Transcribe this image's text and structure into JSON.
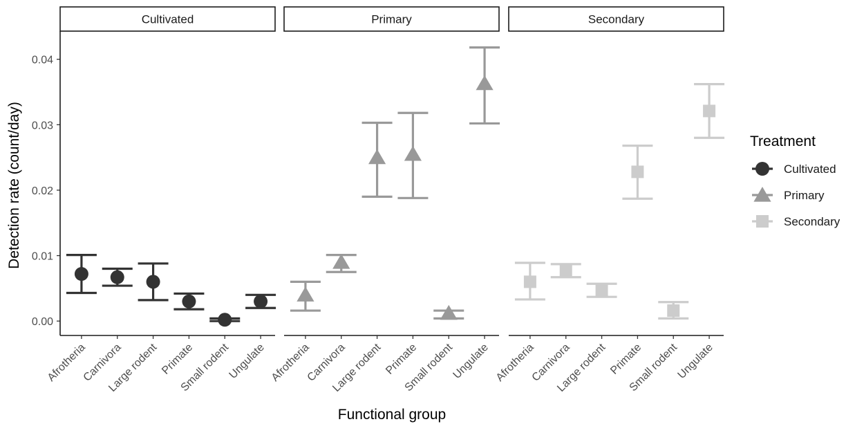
{
  "chart_data": {
    "type": "scatter",
    "subtype": "point-errorbar-facets",
    "xlabel": "Functional group",
    "ylabel": "Detection rate (count/day)",
    "ylim": [
      -0.0022,
      0.0443
    ],
    "y_ticks": [
      0.0,
      0.01,
      0.02,
      0.03,
      0.04
    ],
    "y_tick_labels": [
      "0.00",
      "0.01",
      "0.02",
      "0.03",
      "0.04"
    ],
    "categories": [
      "Afrotheria",
      "Carnivora",
      "Large rodent",
      "Primate",
      "Small rodent",
      "Ungulate"
    ],
    "grid": false,
    "legend": {
      "title": "Treatment",
      "placement": "right",
      "entries": [
        {
          "label": "Cultivated",
          "shape": "circle",
          "color": "#333333"
        },
        {
          "label": "Primary",
          "shape": "triangle",
          "color": "#999999"
        },
        {
          "label": "Secondary",
          "shape": "square",
          "color": "#cccccc"
        }
      ]
    },
    "facets": [
      {
        "label": "Cultivated",
        "shape": "circle",
        "color": "#333333",
        "points": [
          {
            "category": "Afrotheria",
            "y": 0.0072,
            "ymin": 0.0043,
            "ymax": 0.0101
          },
          {
            "category": "Carnivora",
            "y": 0.0067,
            "ymin": 0.0054,
            "ymax": 0.008
          },
          {
            "category": "Large rodent",
            "y": 0.006,
            "ymin": 0.0032,
            "ymax": 0.0088
          },
          {
            "category": "Primate",
            "y": 0.003,
            "ymin": 0.0018,
            "ymax": 0.0042
          },
          {
            "category": "Small rodent",
            "y": 0.0002,
            "ymin": 0.0,
            "ymax": 0.0004
          },
          {
            "category": "Ungulate",
            "y": 0.003,
            "ymin": 0.002,
            "ymax": 0.004
          }
        ]
      },
      {
        "label": "Primary",
        "shape": "triangle",
        "color": "#999999",
        "points": [
          {
            "category": "Afrotheria",
            "y": 0.004,
            "ymin": 0.0016,
            "ymax": 0.006
          },
          {
            "category": "Carnivora",
            "y": 0.009,
            "ymin": 0.0075,
            "ymax": 0.0101
          },
          {
            "category": "Large rodent",
            "y": 0.025,
            "ymin": 0.019,
            "ymax": 0.0303
          },
          {
            "category": "Primate",
            "y": 0.0255,
            "ymin": 0.0188,
            "ymax": 0.0318
          },
          {
            "category": "Small rodent",
            "y": 0.0012,
            "ymin": 0.0004,
            "ymax": 0.0016
          },
          {
            "category": "Ungulate",
            "y": 0.0363,
            "ymin": 0.0302,
            "ymax": 0.0418
          }
        ]
      },
      {
        "label": "Secondary",
        "shape": "square",
        "color": "#cccccc",
        "points": [
          {
            "category": "Afrotheria",
            "y": 0.006,
            "ymin": 0.0033,
            "ymax": 0.0089
          },
          {
            "category": "Carnivora",
            "y": 0.0077,
            "ymin": 0.0067,
            "ymax": 0.0087
          },
          {
            "category": "Large rodent",
            "y": 0.0047,
            "ymin": 0.0037,
            "ymax": 0.0057
          },
          {
            "category": "Primate",
            "y": 0.0228,
            "ymin": 0.0187,
            "ymax": 0.0268
          },
          {
            "category": "Small rodent",
            "y": 0.0016,
            "ymin": 0.0004,
            "ymax": 0.0029
          },
          {
            "category": "Ungulate",
            "y": 0.0321,
            "ymin": 0.028,
            "ymax": 0.0362
          }
        ]
      }
    ]
  }
}
